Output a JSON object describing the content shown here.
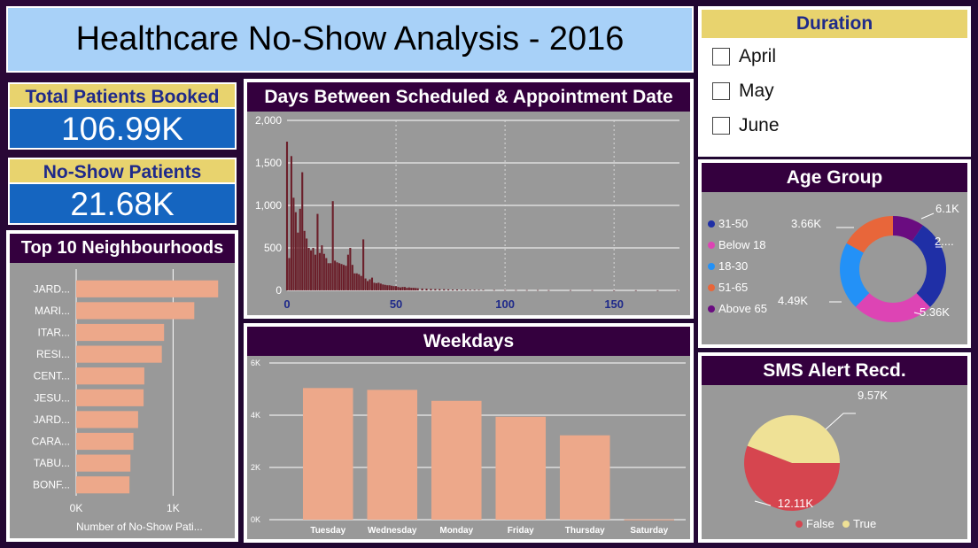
{
  "title": "Healthcare No-Show Analysis - 2016",
  "kpis": {
    "booked": {
      "label": "Total Patients Booked",
      "value": "106.99K"
    },
    "noshow": {
      "label": "No-Show Patients",
      "value": "21.68K"
    }
  },
  "duration": {
    "title": "Duration",
    "options": [
      "April",
      "May",
      "June"
    ]
  },
  "colors": {
    "title_bg": "#a8d1f8",
    "kpi_label_bg": "#e8d36e",
    "kpi_value_bg": "#1565c0",
    "header_bg": "#34003e",
    "plot_bg": "#999999",
    "bar_salmon": "#eda88a",
    "days_bar": "#6b1f2a"
  },
  "charts": {
    "days": {
      "title": "Days Between Scheduled & Appointment Date",
      "xticks": [
        "0",
        "50",
        "100",
        "150"
      ],
      "yticks": [
        "0",
        "500",
        "1,000",
        "1,500",
        "2,000"
      ]
    },
    "neighbourhoods": {
      "title": "Top 10 Neighbourhoods",
      "xlabel": "Number of No-Show Pati...",
      "xticks": [
        "0K",
        "1K"
      ]
    },
    "weekdays": {
      "title": "Weekdays",
      "yticks": [
        "0K",
        "2K",
        "4K",
        "6K"
      ]
    },
    "age": {
      "title": "Age Group"
    },
    "sms": {
      "title": "SMS Alert Recd."
    }
  },
  "chart_data": [
    {
      "type": "bar",
      "title": "Days Between Scheduled & Appointment Date",
      "xlabel": "",
      "ylabel": "",
      "ylim": [
        0,
        2000
      ],
      "xlim": [
        0,
        180
      ],
      "x": [
        0,
        1,
        2,
        3,
        4,
        5,
        6,
        7,
        8,
        9,
        10,
        11,
        12,
        13,
        14,
        15,
        16,
        17,
        18,
        19,
        20,
        21,
        22,
        23,
        24,
        25,
        26,
        27,
        28,
        29,
        30,
        31,
        32,
        33,
        34,
        35,
        36,
        37,
        38,
        39,
        40,
        41,
        42,
        43,
        44,
        45,
        46,
        47,
        48,
        49,
        50,
        51,
        52,
        53,
        54,
        55,
        56,
        57,
        58,
        59,
        60,
        62,
        64,
        66,
        68,
        70,
        72,
        74,
        76,
        78,
        80,
        82,
        84,
        86,
        88,
        90,
        95,
        100,
        105,
        110,
        115,
        120,
        130,
        140,
        150,
        160,
        170,
        179
      ],
      "values": [
        1750,
        380,
        1580,
        1090,
        920,
        680,
        960,
        1390,
        700,
        610,
        500,
        470,
        500,
        420,
        900,
        440,
        530,
        430,
        380,
        320,
        320,
        1050,
        350,
        330,
        320,
        310,
        300,
        290,
        420,
        500,
        300,
        200,
        200,
        190,
        170,
        600,
        140,
        110,
        130,
        150,
        90,
        85,
        90,
        80,
        70,
        65,
        60,
        60,
        55,
        50,
        50,
        40,
        35,
        40,
        40,
        30,
        35,
        30,
        30,
        28,
        25,
        22,
        20,
        18,
        16,
        15,
        14,
        12,
        10,
        10,
        8,
        8,
        7,
        6,
        5,
        5,
        4,
        4,
        3,
        3,
        3,
        2,
        2,
        2,
        1,
        1,
        1,
        1
      ]
    },
    {
      "type": "bar",
      "orientation": "horizontal",
      "title": "Top 10 Neighbourhoods",
      "xlabel": "Number of No-Show Pati...",
      "categories": [
        "JARD...",
        "MARI...",
        "ITAR...",
        "RESI...",
        "CENT...",
        "JESU...",
        "JARD...",
        "CARA...",
        "TABU...",
        "BONF..."
      ],
      "values": [
        1465,
        1219,
        907,
        884,
        703,
        696,
        639,
        591,
        560,
        550
      ],
      "xlim": [
        0,
        1600
      ]
    },
    {
      "type": "bar",
      "title": "Weekdays",
      "categories": [
        "Tuesday",
        "Wednesday",
        "Monday",
        "Friday",
        "Thursday",
        "Saturday"
      ],
      "values": [
        5040,
        4970,
        4550,
        3940,
        3230,
        9
      ],
      "ylim": [
        0,
        6000
      ]
    },
    {
      "type": "pie",
      "donut": true,
      "title": "Age Group",
      "legend_position": "left",
      "series": [
        {
          "name": "31-50",
          "value": 6.1,
          "label": "6.1K",
          "color": "#1f2fa6"
        },
        {
          "name": "Below 18",
          "value": 5.36,
          "label": "5.36K",
          "color": "#dd44b4"
        },
        {
          "name": "18-30",
          "value": 4.49,
          "label": "4.49K",
          "color": "#2391f7"
        },
        {
          "name": "51-65",
          "value": 3.66,
          "label": "3.66K",
          "color": "#e8663a"
        },
        {
          "name": "Above 65",
          "value": 2.07,
          "label": "2....",
          "color": "#6a0c80"
        }
      ]
    },
    {
      "type": "pie",
      "title": "SMS Alert Recd.",
      "legend_position": "bottom",
      "series": [
        {
          "name": "False",
          "value": 12.11,
          "label": "12.11K",
          "color": "#d6454f"
        },
        {
          "name": "True",
          "value": 9.57,
          "label": "9.57K",
          "color": "#efe196"
        }
      ]
    }
  ]
}
